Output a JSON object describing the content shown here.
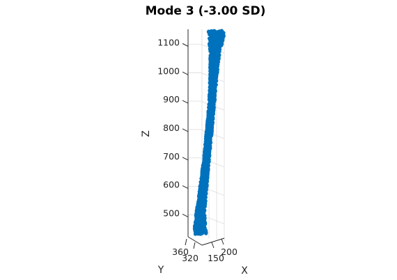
{
  "chart_data": {
    "type": "scatter",
    "title": "Mode 3 (-3.00 SD)",
    "xlabel": "X",
    "ylabel": "Y",
    "zlabel": "Z",
    "series_color": "#0072BD",
    "grid": true,
    "z_ticks": [
      "500",
      "600",
      "700",
      "800",
      "900",
      "1000",
      "1100"
    ],
    "z_tick_values": [
      500,
      600,
      700,
      800,
      900,
      1000,
      1100
    ],
    "zlim": [
      430,
      1160
    ],
    "x_ticks": [
      "150",
      "200"
    ],
    "y_ticks": [
      "320",
      "360"
    ],
    "shape_profile": [
      {
        "z": 440,
        "x": 130,
        "y": 340,
        "half_width": 9
      },
      {
        "z": 470,
        "x": 128,
        "y": 340,
        "half_width": 8
      },
      {
        "z": 520,
        "x": 130,
        "y": 340,
        "half_width": 6
      },
      {
        "z": 600,
        "x": 140,
        "y": 340,
        "half_width": 5
      },
      {
        "z": 700,
        "x": 152,
        "y": 340,
        "half_width": 4
      },
      {
        "z": 800,
        "x": 163,
        "y": 340,
        "half_width": 4
      },
      {
        "z": 900,
        "x": 173,
        "y": 340,
        "half_width": 4
      },
      {
        "z": 1000,
        "x": 180,
        "y": 340,
        "half_width": 5
      },
      {
        "z": 1080,
        "x": 185,
        "y": 340,
        "half_width": 7
      },
      {
        "z": 1130,
        "x": 190,
        "y": 340,
        "half_width": 11
      },
      {
        "z": 1155,
        "x": 190,
        "y": 340,
        "half_width": 11
      }
    ]
  }
}
